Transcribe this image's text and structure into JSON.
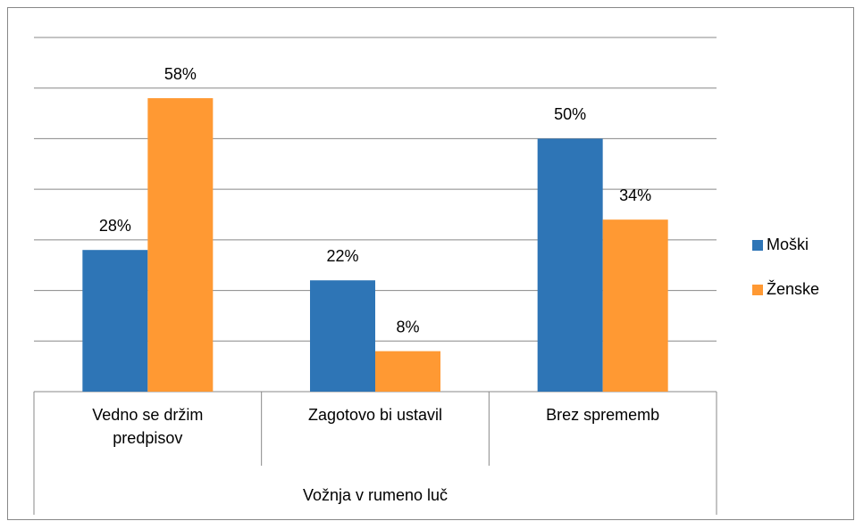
{
  "chart_data": {
    "type": "bar",
    "categories": [
      "Vedno se držim predpisov",
      "Zagotovo bi ustavil",
      "Brez sprememb"
    ],
    "x_label": "Vožnja v rumeno luč",
    "series": [
      {
        "name": "Moški",
        "color": "#2e75b6",
        "values": [
          28,
          22,
          50
        ],
        "value_labels": [
          "28%",
          "22%",
          "50%"
        ]
      },
      {
        "name": "Ženske",
        "color": "#ff9933",
        "values": [
          58,
          8,
          34
        ],
        "value_labels": [
          "58%",
          "8%",
          "34%"
        ]
      }
    ],
    "ylim": [
      0,
      70
    ],
    "yticks": [
      0,
      10,
      20,
      30,
      40,
      50,
      60,
      70
    ],
    "grid": true,
    "legend": "right"
  }
}
